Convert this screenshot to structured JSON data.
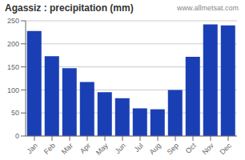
{
  "chart_data": {
    "type": "bar",
    "title": "Agassiz : precipitation (mm)",
    "annotation": "www.allmetsat.com",
    "categories": [
      "Jan",
      "Feb",
      "Mar",
      "Apr",
      "May",
      "Jun",
      "Jul",
      "Aug",
      "Sep",
      "Oct",
      "Nov",
      "Dec"
    ],
    "values": [
      228,
      173,
      147,
      117,
      95,
      82,
      60,
      58,
      100,
      172,
      242,
      240
    ],
    "color": "#1a3fb5",
    "ylim": [
      0,
      250
    ],
    "yticks": [
      0,
      50,
      100,
      150,
      200,
      250
    ],
    "grid": true
  }
}
